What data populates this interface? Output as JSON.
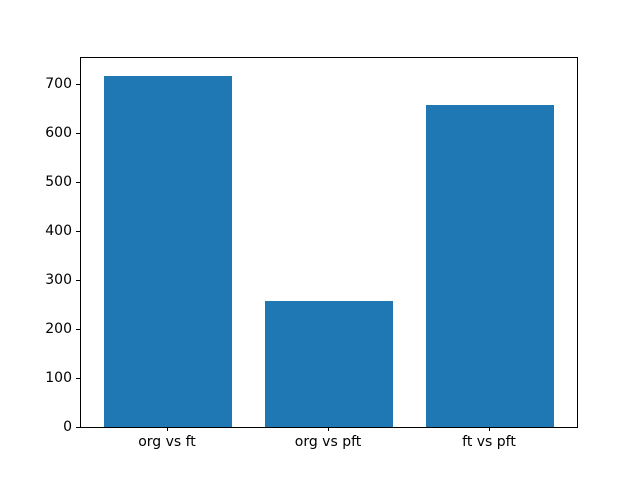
{
  "chart_data": {
    "type": "bar",
    "title": "",
    "xlabel": "",
    "ylabel": "",
    "categories": [
      "org vs ft",
      "org vs pft",
      "ft vs pft"
    ],
    "values": [
      717,
      257,
      657
    ],
    "yticks": [
      0,
      100,
      200,
      300,
      400,
      500,
      600,
      700
    ],
    "ylim": [
      0,
      753
    ],
    "xlim": [
      -0.54,
      2.54
    ],
    "bar_width": 0.8,
    "bar_color": "#1f77b4",
    "spine_color": "#000000",
    "text_color": "#000000",
    "background": "#ffffff",
    "grid": false,
    "legend": null
  }
}
